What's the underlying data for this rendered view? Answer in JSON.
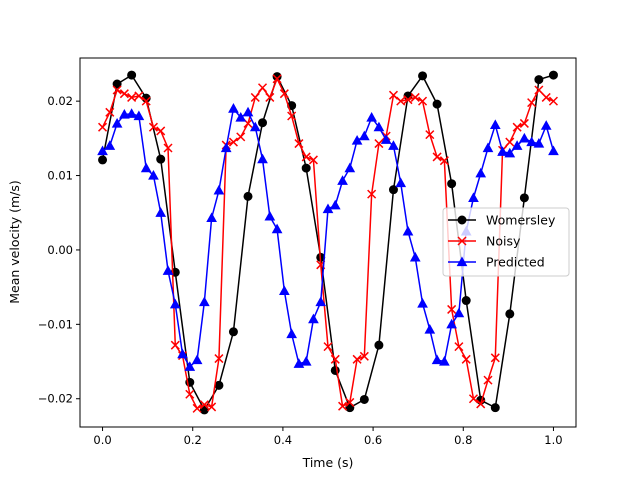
{
  "chart_data": {
    "type": "line",
    "title": "",
    "xlabel": "Time (s)",
    "ylabel": "Mean velocity (m/s)",
    "xlim": [
      -0.05,
      1.05
    ],
    "ylim": [
      -0.0238,
      0.0258
    ],
    "xticks": [
      0.0,
      0.2,
      0.4,
      0.6,
      0.8,
      1.0
    ],
    "xtick_labels": [
      "0.0",
      "0.2",
      "0.4",
      "0.6",
      "0.8",
      "1.0"
    ],
    "yticks": [
      -0.02,
      -0.01,
      0.0,
      0.01,
      0.02
    ],
    "ytick_labels": [
      "−0.02",
      "−0.01",
      "0.00",
      "0.01",
      "0.02"
    ],
    "grid": false,
    "legend_position": "center-right",
    "series": [
      {
        "name": "Womersley",
        "color": "#000000",
        "marker": "circle",
        "x": [
          0.0,
          0.0323,
          0.0645,
          0.0968,
          0.129,
          0.1613,
          0.1935,
          0.2258,
          0.2581,
          0.2903,
          0.3226,
          0.3548,
          0.3871,
          0.4194,
          0.4516,
          0.4839,
          0.5161,
          0.5484,
          0.5806,
          0.6129,
          0.6452,
          0.6774,
          0.7097,
          0.7419,
          0.7742,
          0.8065,
          0.8387,
          0.871,
          0.9032,
          0.9355,
          0.9677,
          1.0
        ],
        "y": [
          0.0121,
          0.0223,
          0.0235,
          0.0204,
          0.0122,
          -0.003,
          -0.0178,
          -0.0215,
          -0.0182,
          -0.011,
          0.0072,
          0.0171,
          0.0233,
          0.0194,
          0.011,
          -0.001,
          -0.0162,
          -0.0212,
          -0.0201,
          -0.0128,
          0.0081,
          0.0207,
          0.0234,
          0.0196,
          0.0089,
          -0.0068,
          -0.0202,
          -0.0212,
          -0.0086,
          0.007,
          0.0229,
          0.0235
        ]
      },
      {
        "name": "Noisy",
        "color": "#ff0000",
        "marker": "x",
        "x": [
          0.0,
          0.0161,
          0.0323,
          0.0484,
          0.0645,
          0.0806,
          0.0968,
          0.1129,
          0.129,
          0.1452,
          0.1613,
          0.1774,
          0.1935,
          0.2097,
          0.2258,
          0.2419,
          0.2581,
          0.2742,
          0.2903,
          0.3065,
          0.3226,
          0.3387,
          0.3548,
          0.371,
          0.3871,
          0.4032,
          0.4194,
          0.4355,
          0.4516,
          0.4677,
          0.4839,
          0.5,
          0.5161,
          0.5323,
          0.5484,
          0.5645,
          0.5806,
          0.5968,
          0.6129,
          0.629,
          0.6452,
          0.6613,
          0.6774,
          0.6935,
          0.7097,
          0.7258,
          0.7419,
          0.7581,
          0.7742,
          0.7903,
          0.8065,
          0.8226,
          0.8387,
          0.8548,
          0.871,
          0.8871,
          0.9032,
          0.9194,
          0.9355,
          0.9516,
          0.9677,
          0.9839,
          1.0
        ],
        "y": [
          0.0165,
          0.0185,
          0.0215,
          0.021,
          0.0205,
          0.0207,
          0.02,
          0.0165,
          0.016,
          0.0137,
          -0.0128,
          -0.0142,
          -0.0194,
          -0.0213,
          -0.0208,
          -0.0211,
          -0.0146,
          0.0141,
          0.0145,
          0.0152,
          0.017,
          0.0205,
          0.0218,
          0.0205,
          0.023,
          0.021,
          0.018,
          0.0143,
          0.0125,
          0.0121,
          -0.002,
          -0.013,
          -0.0147,
          -0.021,
          -0.0205,
          -0.0147,
          -0.0143,
          0.0075,
          0.0143,
          0.0153,
          0.0208,
          0.02,
          0.0202,
          0.0205,
          0.02,
          0.0155,
          0.0125,
          0.012,
          -0.008,
          -0.013,
          -0.0147,
          -0.02,
          -0.0207,
          -0.0175,
          -0.0145,
          0.0134,
          0.0145,
          0.0165,
          0.017,
          0.0198,
          0.0215,
          0.0205,
          0.02
        ]
      },
      {
        "name": "Predicted",
        "color": "#0000ff",
        "marker": "triangle",
        "x": [
          0.0,
          0.0161,
          0.0323,
          0.0484,
          0.0645,
          0.0806,
          0.0968,
          0.1129,
          0.129,
          0.1452,
          0.1613,
          0.1774,
          0.1935,
          0.2097,
          0.2258,
          0.2419,
          0.2581,
          0.2742,
          0.2903,
          0.3065,
          0.3226,
          0.3387,
          0.3548,
          0.371,
          0.3871,
          0.4032,
          0.4194,
          0.4355,
          0.4516,
          0.4677,
          0.4839,
          0.5,
          0.5161,
          0.5323,
          0.5484,
          0.5645,
          0.5806,
          0.5968,
          0.6129,
          0.629,
          0.6452,
          0.6613,
          0.6774,
          0.6935,
          0.7097,
          0.7258,
          0.7419,
          0.7581,
          0.7742,
          0.7903,
          0.8065,
          0.8226,
          0.8387,
          0.8548,
          0.871,
          0.8871,
          0.9032,
          0.9194,
          0.9355,
          0.9516,
          0.9677,
          0.9839,
          1.0
        ],
        "y": [
          0.0133,
          0.014,
          0.017,
          0.0182,
          0.0183,
          0.018,
          0.011,
          0.01,
          0.005,
          -0.0028,
          -0.0073,
          -0.014,
          -0.0157,
          -0.0148,
          -0.007,
          0.0043,
          0.008,
          0.0137,
          0.019,
          0.0178,
          0.0185,
          0.0165,
          0.0122,
          0.0045,
          0.0028,
          -0.0055,
          -0.0113,
          -0.0153,
          -0.015,
          -0.0093,
          -0.007,
          0.0055,
          0.006,
          0.0093,
          0.011,
          0.0147,
          0.0153,
          0.0178,
          0.0165,
          0.0148,
          0.014,
          0.009,
          0.0025,
          -0.001,
          -0.0072,
          -0.0107,
          -0.0148,
          -0.015,
          -0.01,
          -0.0085,
          0.0025,
          0.007,
          0.0103,
          0.0137,
          0.0168,
          0.0132,
          0.013,
          0.014,
          0.015,
          0.0145,
          0.0143,
          0.0167,
          0.0133
        ]
      }
    ]
  }
}
